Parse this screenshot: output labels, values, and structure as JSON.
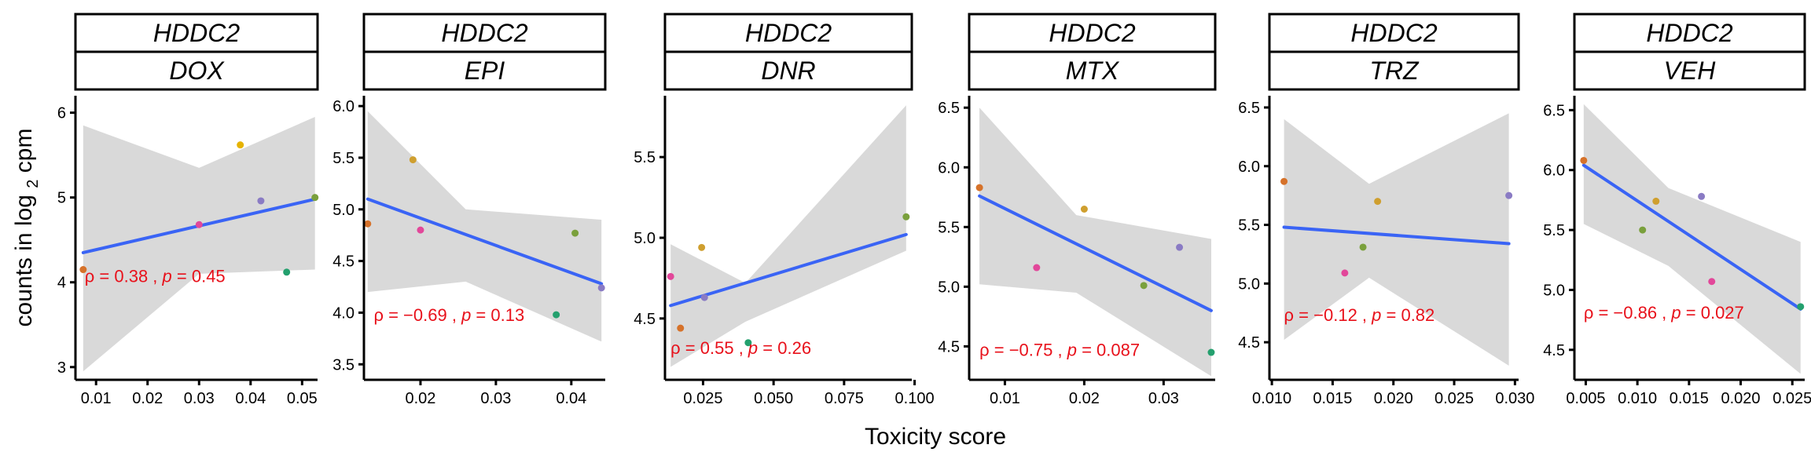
{
  "figure": {
    "ylabel_prefix": "counts in log",
    "ylabel_sub": "2",
    "ylabel_suffix": " cpm",
    "xlabel": "Toxicity score",
    "gene": "HDDC2"
  },
  "colors": {
    "fit_line": "#3a64f5",
    "ribbon": "#d9d9d9",
    "annotation": "#e8101a",
    "points": [
      "#d6722a",
      "#cf9f2f",
      "#e6b300",
      "#e2479a",
      "#8a7bc4",
      "#7aa03c",
      "#24a06e"
    ]
  },
  "chart_data": [
    {
      "type": "scatter",
      "gene": "HDDC2",
      "drug": "DOX",
      "xlim": [
        0.006,
        0.053
      ],
      "ylim": [
        2.85,
        6.2
      ],
      "xticks": [
        0.01,
        0.02,
        0.03,
        0.04,
        0.05
      ],
      "xtick_labels": [
        "0.01",
        "0.02",
        "0.03",
        "0.04",
        "0.05"
      ],
      "yticks": [
        3,
        4,
        5,
        6
      ],
      "ytick_labels": [
        "3",
        "4",
        "5",
        "6"
      ],
      "points": [
        {
          "x": 0.0075,
          "y": 4.15,
          "color": "#d6722a"
        },
        {
          "x": 0.03,
          "y": 4.68,
          "color": "#e2479a"
        },
        {
          "x": 0.038,
          "y": 5.62,
          "color": "#e6b300"
        },
        {
          "x": 0.042,
          "y": 4.96,
          "color": "#8a7bc4"
        },
        {
          "x": 0.047,
          "y": 4.12,
          "color": "#24a06e"
        },
        {
          "x": 0.0525,
          "y": 5.0,
          "color": "#7aa03c"
        }
      ],
      "fit": {
        "x": [
          0.0075,
          0.0525
        ],
        "y": [
          4.35,
          4.98
        ]
      },
      "band": {
        "x": [
          0.0075,
          0.03,
          0.0525
        ],
        "lower": [
          2.95,
          4.1,
          4.15
        ],
        "upper": [
          5.85,
          5.35,
          5.95
        ]
      },
      "annotation": {
        "prefix": "ρ = 0.38 , ",
        "p_label": "p",
        "suffix": " = 0.45",
        "x": 0.0078,
        "y": 4.0
      }
    },
    {
      "type": "scatter",
      "gene": "HDDC2",
      "drug": "EPI",
      "xlim": [
        0.0125,
        0.0445
      ],
      "ylim": [
        3.35,
        6.1
      ],
      "xticks": [
        0.02,
        0.03,
        0.04
      ],
      "xtick_labels": [
        "0.02",
        "0.03",
        "0.04"
      ],
      "yticks": [
        3.5,
        4.0,
        4.5,
        5.0,
        5.5,
        6.0
      ],
      "ytick_labels": [
        "3.5",
        "4.0",
        "4.5",
        "5.0",
        "5.5",
        "6.0"
      ],
      "points": [
        {
          "x": 0.013,
          "y": 4.86,
          "color": "#d6722a"
        },
        {
          "x": 0.019,
          "y": 5.48,
          "color": "#cf9f2f"
        },
        {
          "x": 0.02,
          "y": 4.8,
          "color": "#e2479a"
        },
        {
          "x": 0.038,
          "y": 3.98,
          "color": "#24a06e"
        },
        {
          "x": 0.0405,
          "y": 4.77,
          "color": "#7aa03c"
        },
        {
          "x": 0.044,
          "y": 4.24,
          "color": "#8a7bc4"
        }
      ],
      "fit": {
        "x": [
          0.013,
          0.044
        ],
        "y": [
          5.1,
          4.28
        ]
      },
      "band": {
        "x": [
          0.013,
          0.026,
          0.044
        ],
        "lower": [
          4.2,
          4.3,
          3.72
        ],
        "upper": [
          5.95,
          5.0,
          4.9
        ]
      },
      "annotation": {
        "prefix": "ρ = −0.69 , ",
        "p_label": "p",
        "suffix": " = 0.13",
        "x": 0.0138,
        "y": 3.92
      }
    },
    {
      "type": "scatter",
      "gene": "HDDC2",
      "drug": "DNR",
      "xlim": [
        0.0115,
        0.099
      ],
      "ylim": [
        4.12,
        5.88
      ],
      "xticks": [
        0.025,
        0.05,
        0.075,
        0.1
      ],
      "xtick_labels": [
        "0.025",
        "0.050",
        "0.075",
        "0.100"
      ],
      "yticks": [
        4.5,
        5.0,
        5.5
      ],
      "ytick_labels": [
        "4.5",
        "5.0",
        "5.5"
      ],
      "points": [
        {
          "x": 0.0135,
          "y": 4.76,
          "color": "#e2479a"
        },
        {
          "x": 0.017,
          "y": 4.44,
          "color": "#d6722a"
        },
        {
          "x": 0.0245,
          "y": 4.94,
          "color": "#cf9f2f"
        },
        {
          "x": 0.0255,
          "y": 4.63,
          "color": "#8a7bc4"
        },
        {
          "x": 0.041,
          "y": 4.35,
          "color": "#24a06e"
        },
        {
          "x": 0.097,
          "y": 5.13,
          "color": "#7aa03c"
        }
      ],
      "fit": {
        "x": [
          0.0135,
          0.097
        ],
        "y": [
          4.58,
          5.02
        ]
      },
      "band": {
        "x": [
          0.0135,
          0.04,
          0.097
        ],
        "lower": [
          4.2,
          4.48,
          4.92
        ],
        "upper": [
          4.96,
          4.72,
          5.82
        ]
      },
      "annotation": {
        "prefix": "ρ = 0.55 , ",
        "p_label": "p",
        "suffix": " = 0.26",
        "x": 0.0135,
        "y": 4.28
      }
    },
    {
      "type": "scatter",
      "gene": "HDDC2",
      "drug": "MTX",
      "xlim": [
        0.0055,
        0.0365
      ],
      "ylim": [
        4.22,
        6.6
      ],
      "xticks": [
        0.01,
        0.02,
        0.03
      ],
      "xtick_labels": [
        "0.01",
        "0.02",
        "0.03"
      ],
      "yticks": [
        4.5,
        5.0,
        5.5,
        6.0,
        6.5
      ],
      "ytick_labels": [
        "4.5",
        "5.0",
        "5.5",
        "6.0",
        "6.5"
      ],
      "points": [
        {
          "x": 0.0068,
          "y": 5.83,
          "color": "#d6722a"
        },
        {
          "x": 0.014,
          "y": 5.16,
          "color": "#e2479a"
        },
        {
          "x": 0.02,
          "y": 5.65,
          "color": "#cf9f2f"
        },
        {
          "x": 0.0275,
          "y": 5.01,
          "color": "#7aa03c"
        },
        {
          "x": 0.032,
          "y": 5.33,
          "color": "#8a7bc4"
        },
        {
          "x": 0.036,
          "y": 4.45,
          "color": "#24a06e"
        }
      ],
      "fit": {
        "x": [
          0.0068,
          0.036
        ],
        "y": [
          5.76,
          4.8
        ]
      },
      "band": {
        "x": [
          0.0068,
          0.019,
          0.036
        ],
        "lower": [
          5.02,
          4.95,
          4.25
        ],
        "upper": [
          6.5,
          5.6,
          5.4
        ]
      },
      "annotation": {
        "prefix": "ρ = −0.75 , ",
        "p_label": "p",
        "suffix": " = 0.087",
        "x": 0.0068,
        "y": 4.42
      }
    },
    {
      "type": "scatter",
      "gene": "HDDC2",
      "drug": "TRZ",
      "xlim": [
        0.0098,
        0.0303
      ],
      "ylim": [
        4.18,
        6.6
      ],
      "xticks": [
        0.01,
        0.015,
        0.02,
        0.025,
        0.03
      ],
      "xtick_labels": [
        "0.010",
        "0.015",
        "0.020",
        "0.025",
        "0.030"
      ],
      "yticks": [
        4.5,
        5.0,
        5.5,
        6.0,
        6.5
      ],
      "ytick_labels": [
        "4.5",
        "5.0",
        "5.5",
        "6.0",
        "6.5"
      ],
      "points": [
        {
          "x": 0.011,
          "y": 5.87,
          "color": "#d6722a"
        },
        {
          "x": 0.016,
          "y": 5.09,
          "color": "#e2479a"
        },
        {
          "x": 0.0175,
          "y": 5.31,
          "color": "#7aa03c"
        },
        {
          "x": 0.0187,
          "y": 5.7,
          "color": "#cf9f2f"
        },
        {
          "x": 0.0295,
          "y": 5.75,
          "color": "#8a7bc4"
        }
      ],
      "fit": {
        "x": [
          0.011,
          0.0295
        ],
        "y": [
          5.48,
          5.34
        ]
      },
      "band": {
        "x": [
          0.011,
          0.018,
          0.0295
        ],
        "lower": [
          4.52,
          5.05,
          4.3
        ],
        "upper": [
          6.4,
          5.85,
          6.45
        ]
      },
      "annotation": {
        "prefix": "ρ = −0.12 , ",
        "p_label": "p",
        "suffix": " = 0.82",
        "x": 0.011,
        "y": 4.68
      }
    },
    {
      "type": "scatter",
      "gene": "HDDC2",
      "drug": "VEH",
      "xlim": [
        0.0039,
        0.0262
      ],
      "ylim": [
        4.25,
        6.62
      ],
      "xticks": [
        0.005,
        0.01,
        0.015,
        0.02,
        0.025
      ],
      "xtick_labels": [
        "0.005",
        "0.010",
        "0.015",
        "0.020",
        "0.025"
      ],
      "yticks": [
        4.5,
        5.0,
        5.5,
        6.0,
        6.5
      ],
      "ytick_labels": [
        "4.5",
        "5.0",
        "5.5",
        "6.0",
        "6.5"
      ],
      "points": [
        {
          "x": 0.0048,
          "y": 6.08,
          "color": "#d6722a"
        },
        {
          "x": 0.0105,
          "y": 5.5,
          "color": "#7aa03c"
        },
        {
          "x": 0.0118,
          "y": 5.74,
          "color": "#cf9f2f"
        },
        {
          "x": 0.0162,
          "y": 5.78,
          "color": "#8a7bc4"
        },
        {
          "x": 0.0172,
          "y": 5.07,
          "color": "#e2479a"
        },
        {
          "x": 0.0258,
          "y": 4.86,
          "color": "#24a06e"
        }
      ],
      "fit": {
        "x": [
          0.0048,
          0.0258
        ],
        "y": [
          6.04,
          4.84
        ]
      },
      "band": {
        "x": [
          0.0048,
          0.013,
          0.0258
        ],
        "lower": [
          5.55,
          5.2,
          4.3
        ],
        "upper": [
          6.55,
          5.85,
          5.4
        ]
      },
      "annotation": {
        "prefix": "ρ = −0.86 , ",
        "p_label": "p",
        "suffix": " = 0.027",
        "x": 0.0048,
        "y": 4.76
      }
    }
  ]
}
